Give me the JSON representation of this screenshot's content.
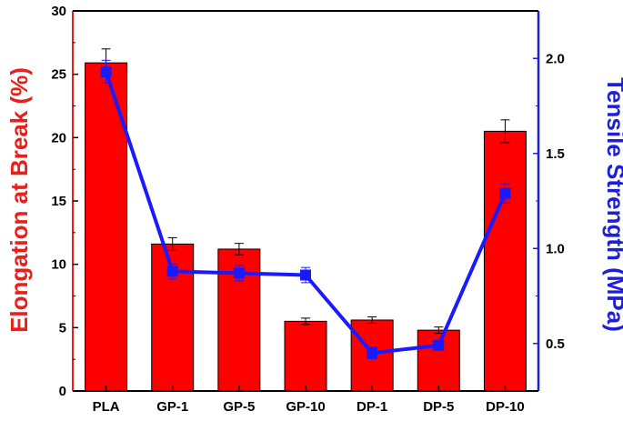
{
  "chart_data": {
    "type": "bar+line",
    "categories": [
      "PLA",
      "GP-1",
      "GP-5",
      "GP-10",
      "DP-1",
      "DP-5",
      "DP-10"
    ],
    "bar_series": {
      "axis": "left",
      "values": [
        25.9,
        11.6,
        11.2,
        5.5,
        5.6,
        4.8,
        20.5
      ],
      "errors": [
        1.1,
        0.5,
        0.45,
        0.25,
        0.25,
        0.25,
        0.9
      ],
      "color": "#ff0000"
    },
    "line_series": {
      "axis": "right",
      "values": [
        1.93,
        0.88,
        0.87,
        0.86,
        0.45,
        0.49,
        1.29
      ],
      "errors": [
        0.06,
        0.04,
        0.04,
        0.04,
        0.03,
        0.02,
        0.05
      ],
      "color": "#1a1aff"
    },
    "ylabel_left": "Elongation at Break (%)",
    "ylabel_right": "Tensile Strength (MPa)",
    "ylim_left": [
      0,
      30
    ],
    "ylim_right": [
      0.25,
      2.25
    ],
    "yticks_left": [
      "0",
      "5",
      "10",
      "15",
      "20",
      "25",
      "30"
    ],
    "yticks_right": [
      "0.5",
      "1.0",
      "1.5",
      "2.0"
    ],
    "left_axis_color": "#e8201c",
    "right_axis_color": "#1f1fd8",
    "grid": false
  }
}
